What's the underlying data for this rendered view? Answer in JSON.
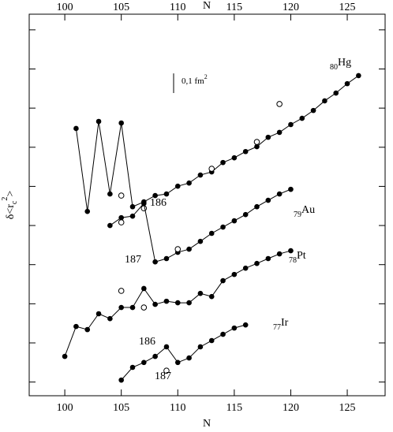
{
  "chart_data": {
    "type": "line",
    "xlabel": "N",
    "ylabel": [
      "δ<r",
      "c",
      "2",
      ">"
    ],
    "xlim": [
      96.85,
      128.35
    ],
    "ylim": [
      -0.07,
      1.88
    ],
    "xticks": [
      100,
      105,
      110,
      115,
      120,
      125
    ],
    "yticks": [
      0,
      0.2,
      0.4,
      0.6,
      0.8,
      1,
      1.2,
      1.4,
      1.6,
      1.8
    ],
    "scale_bar": {
      "value": 0.1,
      "label": "0,1 fm",
      "label_sup": "2"
    },
    "series": [
      {
        "name": "Hg",
        "z": "80",
        "color": "#000000",
        "x": [
          101,
          102,
          103,
          104,
          105,
          106,
          107,
          108,
          109,
          110,
          111,
          112,
          113,
          114,
          115,
          116,
          117,
          118,
          119,
          120,
          121,
          122,
          123,
          124,
          125,
          126
        ],
        "values": [
          1.296,
          0.872,
          1.332,
          0.961,
          1.324,
          0.896,
          0.921,
          0.953,
          0.961,
          1.001,
          1.017,
          1.058,
          1.074,
          1.122,
          1.146,
          1.178,
          1.203,
          1.251,
          1.276,
          1.316,
          1.348,
          1.388,
          1.437,
          1.477,
          1.525,
          1.566
        ],
        "open_x": [
          105,
          107,
          113,
          117,
          119
        ],
        "open_values": [
          0.953,
          0.888,
          1.09,
          1.227,
          1.421
        ]
      },
      {
        "name": "Au",
        "z": "79",
        "color": "#000000",
        "x": [
          104,
          105,
          106,
          107,
          108,
          109,
          110,
          111,
          112,
          113,
          114,
          115,
          116,
          117,
          118,
          119,
          120
        ],
        "values": [
          0.8,
          0.84,
          0.848,
          0.913,
          0.614,
          0.631,
          0.663,
          0.679,
          0.719,
          0.76,
          0.792,
          0.824,
          0.856,
          0.896,
          0.929,
          0.961,
          0.985
        ],
        "open_x": [
          105,
          110
        ],
        "open_values": [
          0.816,
          0.679
        ]
      },
      {
        "name": "Pt",
        "z": "78",
        "color": "#000000",
        "x": [
          100,
          101,
          102,
          103,
          104,
          105,
          106,
          107,
          108,
          109,
          110,
          111,
          112,
          113,
          114,
          115,
          116,
          117,
          118,
          119,
          120
        ],
        "values": [
          0.131,
          0.284,
          0.268,
          0.349,
          0.324,
          0.381,
          0.381,
          0.478,
          0.397,
          0.413,
          0.405,
          0.405,
          0.453,
          0.437,
          0.518,
          0.55,
          0.582,
          0.606,
          0.631,
          0.655,
          0.671
        ],
        "open_x": [
          105,
          107
        ],
        "open_values": [
          0.466,
          0.381
        ]
      },
      {
        "name": "Ir",
        "z": "77",
        "color": "#000000",
        "x": [
          105,
          106,
          107,
          108,
          109,
          110,
          111,
          112,
          113,
          114,
          115,
          116
        ],
        "values": [
          0.01,
          0.075,
          0.1,
          0.131,
          0.18,
          0.1,
          0.123,
          0.18,
          0.212,
          0.244,
          0.276,
          0.292
        ],
        "open_x": [
          109
        ],
        "open_values": [
          0.058
        ]
      }
    ],
    "annotations": [
      "186",
      "187",
      "186",
      "187"
    ]
  }
}
